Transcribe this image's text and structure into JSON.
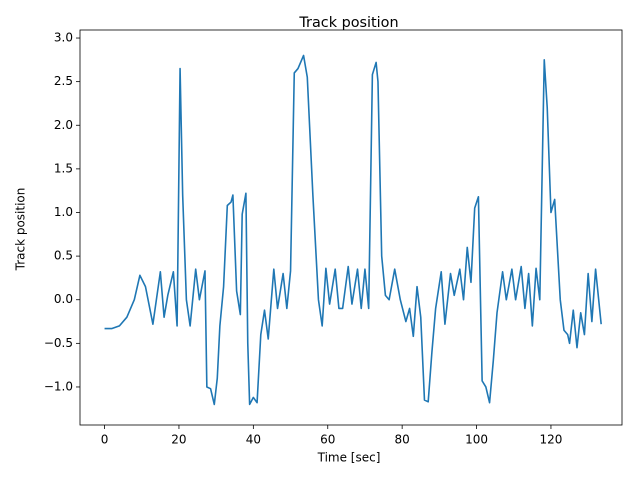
{
  "chart_data": {
    "type": "line",
    "title": "Track position",
    "x_label": "Time [sec]",
    "y_label": "Track position",
    "color": "#1f77b4",
    "x": [
      0,
      2,
      4,
      6,
      8,
      9.5,
      11,
      13,
      15,
      16,
      17,
      18.5,
      19.5,
      20.3,
      21,
      22,
      23,
      24.5,
      25.5,
      27,
      27.5,
      28.5,
      29.5,
      30.3,
      31,
      32,
      33,
      34,
      34.5,
      35.5,
      36.5,
      37,
      38,
      38.5,
      39,
      40,
      41,
      42,
      43,
      44,
      45.5,
      46.5,
      48,
      49,
      50,
      51,
      52,
      53.5,
      54.5,
      56,
      57.5,
      58.5,
      59.5,
      60.5,
      62,
      63,
      64,
      65.5,
      66.5,
      68,
      69,
      70,
      71,
      72,
      73,
      73.5,
      74.5,
      75.5,
      76.5,
      78,
      79.5,
      81,
      82,
      83,
      84,
      85,
      86,
      87,
      88,
      89,
      90.5,
      91.5,
      93,
      94,
      95.5,
      96.5,
      97.5,
      98.5,
      99.5,
      100.5,
      101.5,
      102.5,
      103.5,
      104.5,
      105.5,
      107,
      108,
      109.5,
      110.5,
      112,
      113,
      114,
      115,
      116,
      117,
      118.2,
      119,
      120,
      121,
      122.5,
      123.5,
      124.5,
      125,
      126,
      127,
      128,
      129,
      130,
      131,
      132,
      133.5
    ],
    "values": [
      -0.33,
      -0.33,
      -0.3,
      -0.2,
      0.0,
      0.28,
      0.15,
      -0.28,
      0.32,
      -0.2,
      0.05,
      0.32,
      -0.3,
      2.65,
      1.2,
      0,
      -0.3,
      0.35,
      0,
      0.33,
      -1.0,
      -1.02,
      -1.2,
      -0.9,
      -0.3,
      0.15,
      1.08,
      1.12,
      1.2,
      0.1,
      -0.17,
      0.98,
      1.22,
      -0.5,
      -1.2,
      -1.12,
      -1.18,
      -0.4,
      -0.12,
      -0.45,
      0.35,
      -0.1,
      0.3,
      -0.1,
      0.33,
      2.6,
      2.65,
      2.8,
      2.55,
      1.2,
      0,
      -0.3,
      0.36,
      -0.05,
      0.35,
      -0.1,
      -0.1,
      0.38,
      -0.05,
      0.35,
      -0.1,
      0.35,
      -0.1,
      2.58,
      2.72,
      2.5,
      0.5,
      0.05,
      0.0,
      0.35,
      0,
      -0.25,
      -0.1,
      -0.42,
      0.15,
      -0.2,
      -1.15,
      -1.17,
      -0.6,
      -0.1,
      0.32,
      -0.28,
      0.3,
      0.05,
      0.35,
      0.0,
      0.6,
      0.2,
      1.05,
      1.18,
      -0.93,
      -1.0,
      -1.18,
      -0.7,
      -0.15,
      0.32,
      0.0,
      0.35,
      0.0,
      0.38,
      -0.1,
      0.3,
      -0.3,
      0.36,
      0.0,
      2.75,
      2.2,
      1.0,
      1.15,
      0,
      -0.35,
      -0.4,
      -0.5,
      -0.12,
      -0.55,
      -0.15,
      -0.4,
      0.3,
      -0.25,
      0.35,
      -0.28
    ],
    "xlim": [
      -6.6,
      139.1
    ],
    "ylim": [
      -1.436,
      3.092
    ],
    "xticks": [
      0,
      20,
      40,
      60,
      80,
      100,
      120
    ],
    "yticks": [
      {
        "value": -1,
        "label": "−1.0"
      },
      {
        "value": -0.5,
        "label": "−0.5"
      },
      {
        "value": 0,
        "label": "0.0"
      },
      {
        "value": 0.5,
        "label": "0.5"
      },
      {
        "value": 1,
        "label": "1.0"
      },
      {
        "value": 1.5,
        "label": "1.5"
      },
      {
        "value": 2,
        "label": "2.0"
      },
      {
        "value": 2.5,
        "label": "2.5"
      },
      {
        "value": 3,
        "label": "3.0"
      }
    ]
  }
}
